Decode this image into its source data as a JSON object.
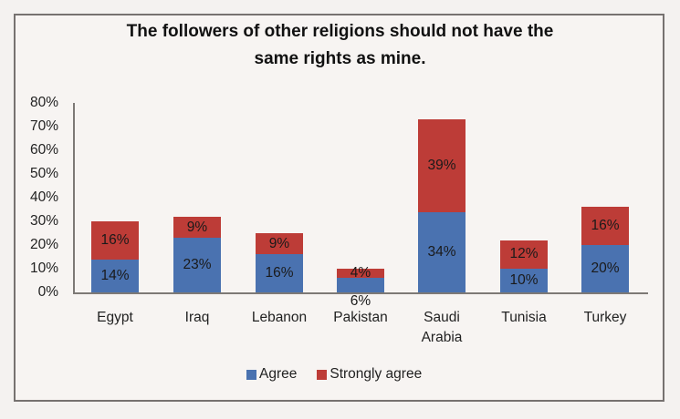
{
  "chart_data": {
    "type": "bar",
    "stacked": true,
    "title": "The followers of other religions should not have the same rights as mine.",
    "title_lines": [
      "The followers of other religions should not have the",
      "same rights as mine."
    ],
    "xlabel": "",
    "ylabel": "",
    "ylim": [
      0,
      80
    ],
    "yticks": [
      "0%",
      "10%",
      "20%",
      "30%",
      "40%",
      "50%",
      "60%",
      "70%",
      "80%"
    ],
    "categories": [
      "Egypt",
      "Iraq",
      "Lebanon",
      "Pakistan",
      "Saudi Arabia",
      "Tunisia",
      "Turkey"
    ],
    "category_lines": [
      [
        "Egypt"
      ],
      [
        "Iraq"
      ],
      [
        "Lebanon"
      ],
      [
        "Pakistan"
      ],
      [
        "Saudi",
        "Arabia"
      ],
      [
        "Tunisia"
      ],
      [
        "Turkey"
      ]
    ],
    "series": [
      {
        "name": "Agree",
        "color": "#4a72b0",
        "values": [
          14,
          23,
          16,
          6,
          34,
          10,
          20
        ],
        "labels": [
          "14%",
          "23%",
          "16%",
          "6%",
          "34%",
          "10%",
          "20%"
        ]
      },
      {
        "name": "Strongly agree",
        "color": "#bd3c37",
        "values": [
          16,
          9,
          9,
          4,
          39,
          12,
          16
        ],
        "labels": [
          "16%",
          "9%",
          "9%",
          "4%",
          "39%",
          "12%",
          "16%"
        ]
      }
    ],
    "grid": false,
    "legend_position": "bottom"
  },
  "legend": {
    "agree": "Agree",
    "strongly_agree": "Strongly agree"
  }
}
